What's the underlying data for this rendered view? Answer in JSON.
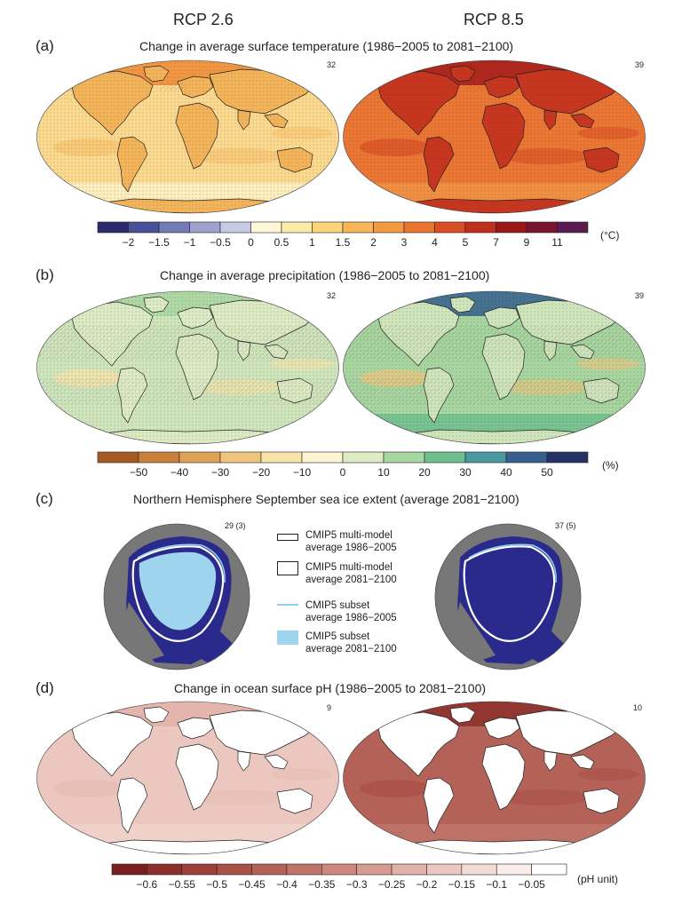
{
  "scenarios": {
    "left": "RCP 2.6",
    "right": "RCP 8.5"
  },
  "panel_a": {
    "label": "(a)",
    "title": "Change in average surface temperature (1986−2005 to 2081−2100)",
    "counts": [
      "32",
      "39"
    ],
    "colorbar": {
      "unit": "(°C)",
      "ticks": [
        "−2",
        "−1.5",
        "−1",
        "−0.5",
        "0",
        "0.5",
        "1",
        "1.5",
        "2",
        "3",
        "4",
        "5",
        "7",
        "9",
        "11"
      ],
      "colors": [
        "#2b2a6e",
        "#4b4f9a",
        "#7479b8",
        "#9ea2cf",
        "#c8cae4",
        "#fff8d6",
        "#fde9a8",
        "#fbd47c",
        "#f7b657",
        "#f29a3f",
        "#ea7530",
        "#d94f24",
        "#c02e1e",
        "#9c1818",
        "#7a1530",
        "#5b1a50"
      ]
    },
    "maps": [
      {
        "colors": {
          "ocean": "#fbd98f",
          "land": "#f4b45a",
          "arctic": "#f08a34",
          "south": "#fdf1c6",
          "patches": "#f7c26c"
        }
      },
      {
        "colors": {
          "ocean": "#ec7633",
          "land": "#c8361f",
          "arctic": "#a41a1a",
          "south": "#f29547",
          "patches": "#d94f24"
        }
      }
    ]
  },
  "panel_b": {
    "label": "(b)",
    "title": "Change in average precipitation (1986−2005 to 2081−2100)",
    "counts": [
      "32",
      "39"
    ],
    "colorbar": {
      "unit": "(%)",
      "ticks": [
        "−50",
        "−40",
        "−30",
        "−20",
        "−10",
        "0",
        "10",
        "20",
        "30",
        "40",
        "50"
      ],
      "colors": [
        "#a65a22",
        "#c97f3a",
        "#dea255",
        "#efc57d",
        "#f8e3a8",
        "#fcf3d2",
        "#ddecc2",
        "#a8d6a0",
        "#6fbf8e",
        "#4b99a0",
        "#35608e",
        "#253266"
      ]
    },
    "maps": [
      {
        "colors": {
          "ocean": "#cfe5bc",
          "land": "#dcebc4",
          "arctic": "#a8d6a0",
          "south": "#cfe5bc",
          "patches": "#f8e3a8"
        }
      },
      {
        "colors": {
          "ocean": "#a8d6a0",
          "land": "#cfe5bc",
          "arctic": "#35608e",
          "south": "#6fbf8e",
          "patches": "#efc57d"
        }
      }
    ]
  },
  "panel_c": {
    "label": "(c)",
    "title": "Northern Hemisphere September sea ice extent (average 2081−2100)",
    "counts": [
      "29 (3)",
      "37 (5)"
    ],
    "legend": [
      {
        "id": "cmip5-mm-1986",
        "text": [
          "CMIP5 multi-model",
          "average 1986−2005"
        ]
      },
      {
        "id": "cmip5-mm-2081",
        "text": [
          "CMIP5 multi-model",
          "average 2081−2100"
        ]
      },
      {
        "id": "cmip5-sub-1986",
        "text": [
          "CMIP5 subset",
          "average 1986−2005"
        ]
      },
      {
        "id": "cmip5-sub-2081",
        "text": [
          "CMIP5 subset",
          "average 2081−2100"
        ]
      }
    ],
    "colors": {
      "ocean": "#2a2a8c",
      "land": "#777777",
      "ice": "#9ed4ee",
      "line": "#ffffff",
      "subset_line": "#8fd0ee"
    }
  },
  "panel_d": {
    "label": "(d)",
    "title": "Change in ocean surface pH (1986−2005 to 2081−2100)",
    "counts": [
      "9",
      "10"
    ],
    "colorbar": {
      "unit": "(pH unit)",
      "ticks": [
        "−0.6",
        "−0.55",
        "−0.5",
        "−0.45",
        "−0.4",
        "−0.35",
        "−0.3",
        "−0.25",
        "−0.2",
        "−0.15",
        "−0.1",
        "−0.05"
      ],
      "colors": [
        "#7a1f1d",
        "#8c2f2b",
        "#9c3f38",
        "#a84f46",
        "#b46257",
        "#c07468",
        "#cc887c",
        "#d79c91",
        "#e2b2a8",
        "#ebc7bf",
        "#f4dcd6",
        "#faeeea",
        "#ffffff"
      ]
    },
    "maps": [
      {
        "colors": {
          "ocean": "#ebc7bf",
          "land": "#ffffff",
          "arctic": "#e2b2a8",
          "south": "#f0d2cb",
          "patches": "#e6bcb3"
        }
      },
      {
        "colors": {
          "ocean": "#b46257",
          "land": "#ffffff",
          "arctic": "#8c2f2b",
          "south": "#c07468",
          "patches": "#a84f46"
        }
      }
    ]
  }
}
